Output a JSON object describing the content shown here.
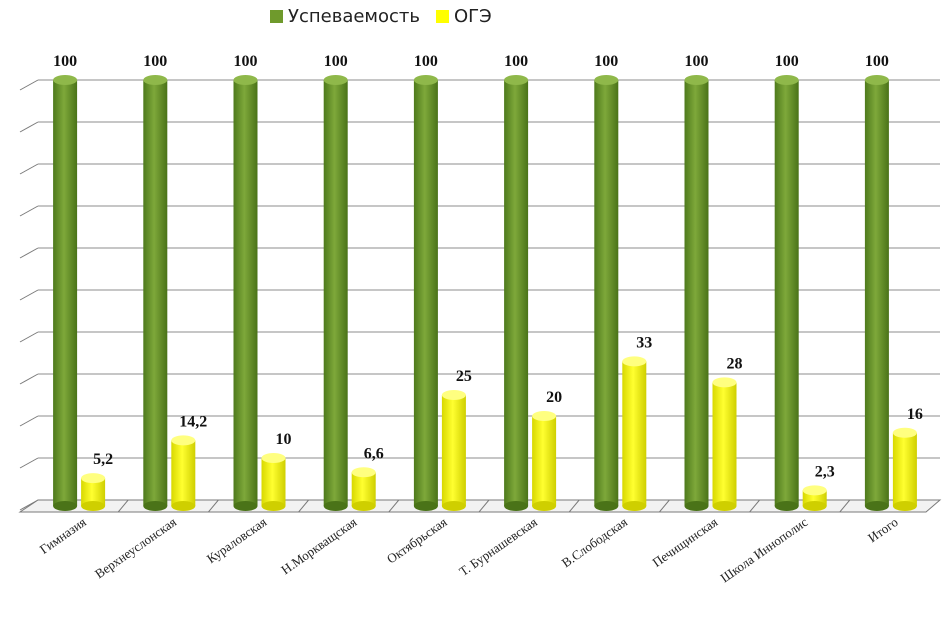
{
  "chart_data": {
    "type": "bar",
    "categories": [
      "Гимназия",
      "Верхнеуслонская",
      "Кураловская",
      "Н.Моркващская",
      "Октябрьская",
      "Т. Бурнашевская",
      "В.Слободская",
      "Печищинская",
      "Школа Иннополис",
      "Итого"
    ],
    "series": [
      {
        "name": "Успеваемость",
        "values": [
          100,
          100,
          100,
          100,
          100,
          100,
          100,
          100,
          100,
          100
        ],
        "labels": [
          "100",
          "100",
          "100",
          "100",
          "100",
          "100",
          "100",
          "100",
          "100",
          "100"
        ],
        "color": "#6f9a2c"
      },
      {
        "name": "ОГЭ",
        "values": [
          5.2,
          14.2,
          10,
          6.6,
          25,
          20,
          33,
          28,
          2.3,
          16
        ],
        "labels": [
          "5,2",
          "14,2",
          "10",
          "6,6",
          "25",
          "20",
          "33",
          "28",
          "2,3",
          "16"
        ],
        "color": "#ffff00"
      }
    ],
    "ylim": [
      0,
      100
    ],
    "grid": true,
    "legend": "top"
  }
}
